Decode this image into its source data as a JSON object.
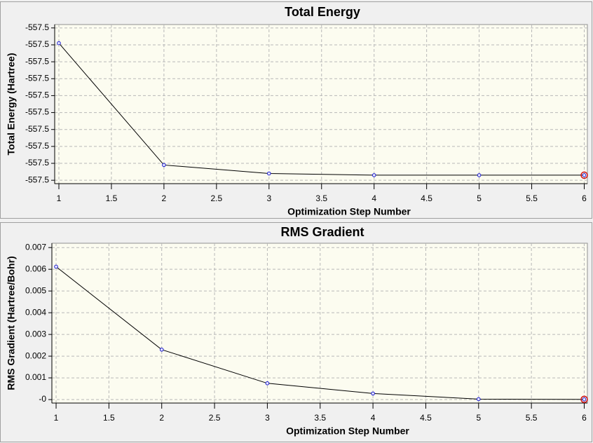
{
  "chart_data": [
    {
      "type": "line",
      "title": "Total Energy",
      "x_label": "Optimization Step Number",
      "y_label": "Total Energy (Hartree)",
      "x": [
        1,
        2,
        3,
        4,
        5,
        6
      ],
      "series": [
        {
          "color": "#000000",
          "marker_color": "#1a1ad0",
          "values": [
            -557.4959,
            -557.5031,
            -557.5036,
            -557.5037,
            -557.5037,
            -557.5037
          ]
        }
      ],
      "highlight_color": "#d01010",
      "xlim": [
        0.96,
        6.03
      ],
      "xticks": [
        1,
        1.5,
        2,
        2.5,
        3,
        3.5,
        4,
        4.5,
        5,
        5.5,
        6
      ],
      "ylim": [
        -557.5042,
        -557.4948
      ],
      "yticks": [
        {
          "value": -557.504,
          "label": "-557.5"
        },
        {
          "value": -557.503,
          "label": "-557.5"
        },
        {
          "value": -557.502,
          "label": "-557.5"
        },
        {
          "value": -557.501,
          "label": "-557.5"
        },
        {
          "value": -557.5,
          "label": "-557.5"
        },
        {
          "value": -557.499,
          "label": "-557.5"
        },
        {
          "value": -557.498,
          "label": "-557.5"
        },
        {
          "value": -557.497,
          "label": "-557.5"
        },
        {
          "value": -557.496,
          "label": "-557.5"
        },
        {
          "value": -557.495,
          "label": "-557.5"
        }
      ],
      "grid": true
    },
    {
      "type": "line",
      "title": "RMS Gradient",
      "x_label": "Optimization Step Number",
      "y_label": "RMS Gradient (Hartree/Bohr)",
      "x": [
        1,
        2,
        3,
        4,
        5,
        6
      ],
      "series": [
        {
          "color": "#000000",
          "marker_color": "#1a1ad0",
          "values": [
            0.00612,
            0.0023,
            0.00075,
            0.00028,
            2e-05,
            1e-05
          ]
        }
      ],
      "highlight_color": "#d01010",
      "xlim": [
        0.96,
        6.03
      ],
      "xticks": [
        1,
        1.5,
        2,
        2.5,
        3,
        3.5,
        4,
        4.5,
        5,
        5.5,
        6
      ],
      "ylim": [
        -0.00016,
        0.0072
      ],
      "yticks": [
        {
          "value": 0,
          "label": "-0"
        },
        0.001,
        0.002,
        0.003,
        0.004,
        0.005,
        0.006,
        0.007
      ],
      "grid": true
    }
  ]
}
